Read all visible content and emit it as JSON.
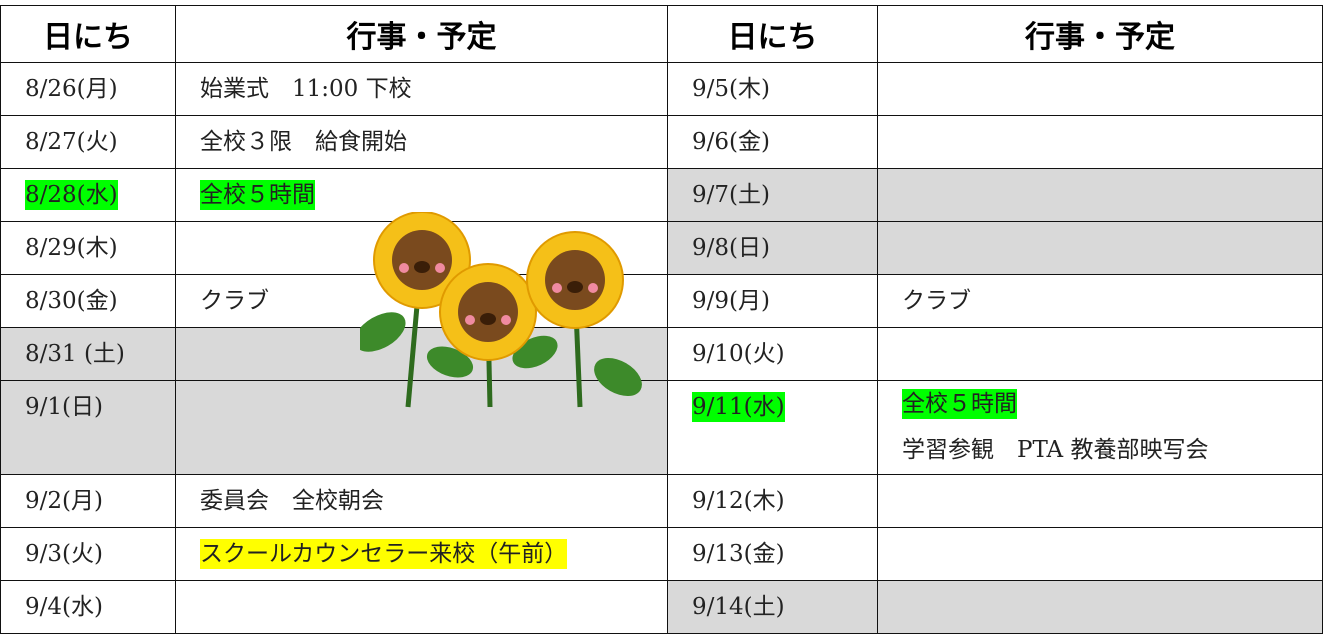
{
  "table": {
    "headers": [
      "日にち",
      "行事・予定",
      "日にち",
      "行事・予定"
    ],
    "rows": [
      [
        {
          "text": "8/26(月)"
        },
        {
          "text": "始業式　11:00 下校"
        },
        {
          "text": "9/5(木)"
        },
        {}
      ],
      [
        {
          "text": "8/27(火)"
        },
        {
          "text": "全校３限　給食開始"
        },
        {
          "text": "9/6(金)"
        },
        {}
      ],
      [
        {
          "text": "8/28(水)",
          "highlight": "#00ff00"
        },
        {
          "text": "全校５時間",
          "highlight": "#00ff00"
        },
        {
          "text": "9/7(土)",
          "shade": true
        },
        {
          "shade": true
        }
      ],
      [
        {
          "text": "8/29(木)"
        },
        {},
        {
          "text": "9/8(日)",
          "shade": true
        },
        {
          "shade": true
        }
      ],
      [
        {
          "text": "8/30(金)"
        },
        {
          "text": "クラブ"
        },
        {
          "text": "9/9(月)"
        },
        {
          "text": "クラブ"
        }
      ],
      [
        {
          "text": "8/31 (土)",
          "shade": true
        },
        {
          "shade": true
        },
        {
          "text": "9/10(火)"
        },
        {}
      ],
      [
        {
          "text": "9/1(日)",
          "shade": true
        },
        {
          "shade": true
        },
        {
          "text": "9/11(水)",
          "highlight": "#00ff00"
        },
        {
          "text": "全校５時間",
          "highlight": "#00ff00",
          "more": "学習参観　PTA 教養部映写会"
        }
      ],
      [
        {
          "text": "9/2(月)"
        },
        {
          "text": "委員会　全校朝会"
        },
        {
          "text": "9/12(木)"
        },
        {}
      ],
      [
        {
          "text": "9/3(火)"
        },
        {
          "text": "スクールカウンセラー来校（午前）",
          "highlight": "#ffff00"
        },
        {
          "text": "9/13(金)"
        },
        {}
      ],
      [
        {
          "text": "9/4(水)"
        },
        {},
        {
          "text": "9/14(土)",
          "shade": true
        },
        {
          "shade": true
        }
      ]
    ]
  }
}
